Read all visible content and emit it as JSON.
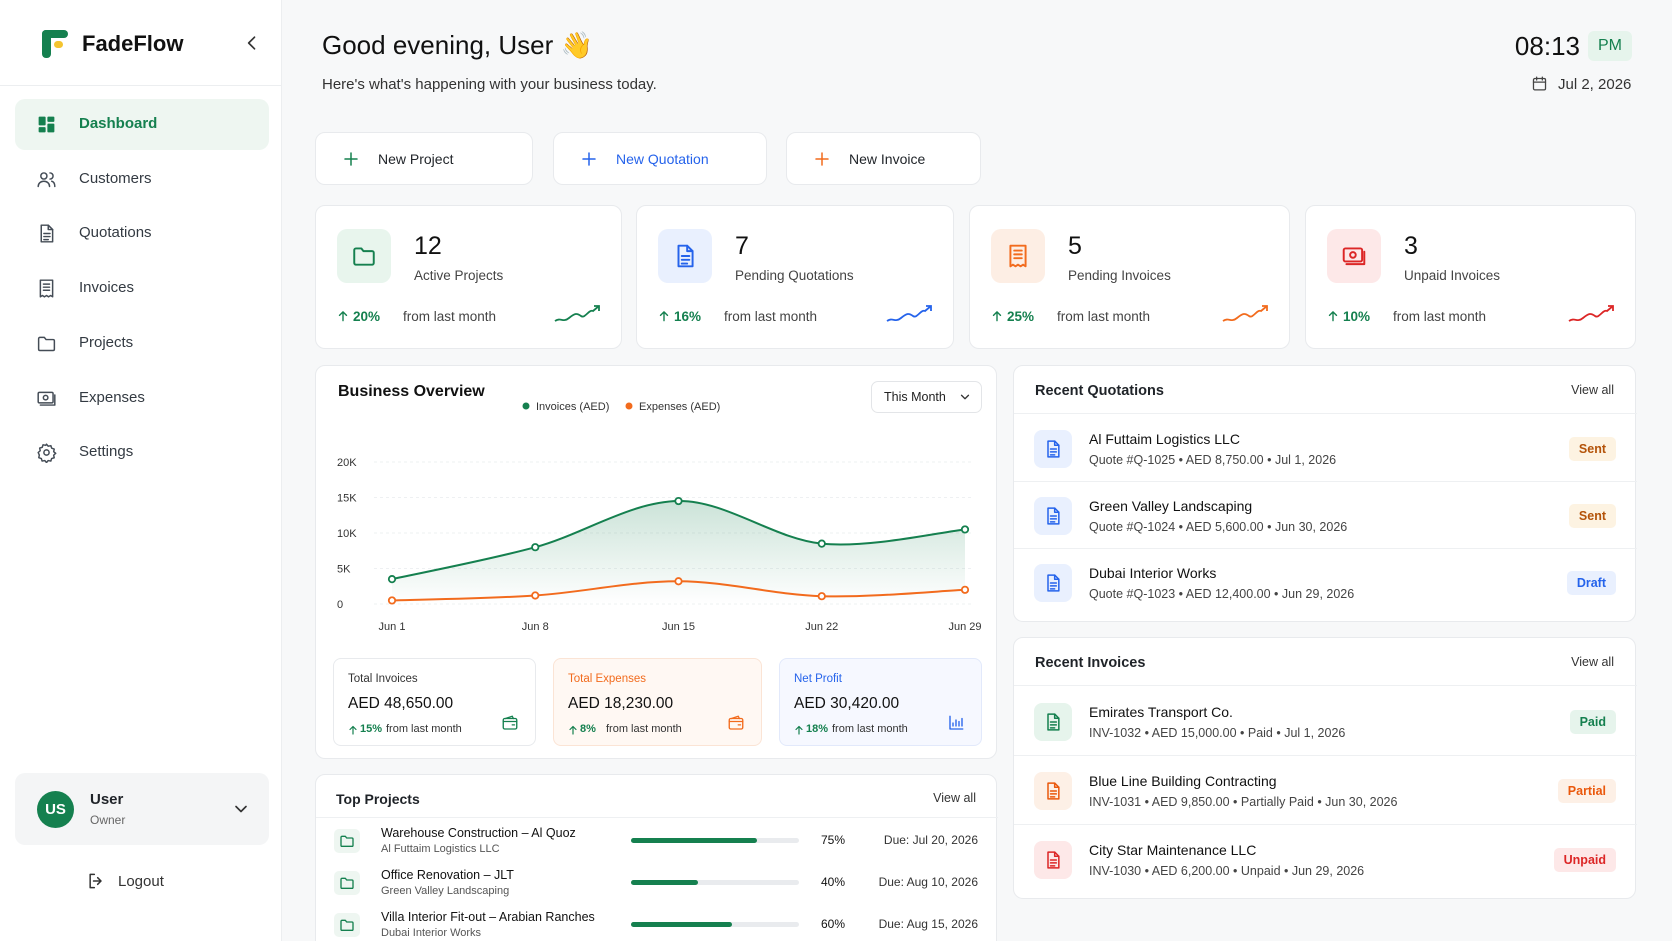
{
  "sidebar": {
    "brand": "FadeFlow",
    "nav": [
      "Dashboard",
      "Customers",
      "Quotations",
      "Invoices",
      "Projects",
      "Expenses",
      "Settings"
    ],
    "user": {
      "initials": "US",
      "name": "User",
      "role": "Owner"
    },
    "logout": "Logout"
  },
  "header": {
    "greeting": "Good evening, User 👋",
    "subtitle": "Here's what's happening with your business today.",
    "time": "08:13",
    "period": "PM",
    "date": "Jul 2, 2026"
  },
  "actions": [
    "New Project",
    "New Quotation",
    "New Invoice"
  ],
  "stats": [
    {
      "value": "12",
      "label": "Active Projects",
      "change": "20%",
      "change_text": "from last month"
    },
    {
      "value": "7",
      "label": "Pending Quotations",
      "change": "16%",
      "change_text": "from last month"
    },
    {
      "value": "5",
      "label": "Pending Invoices",
      "change": "25%",
      "change_text": "from last month"
    },
    {
      "value": "3",
      "label": "Unpaid Invoices",
      "change": "10%",
      "change_text": "from last month"
    }
  ],
  "overview": {
    "title": "Business Overview",
    "filter": "This Month",
    "chart_data": {
      "type": "line",
      "categories": [
        "Jun 1",
        "Jun 8",
        "Jun 15",
        "Jun 22",
        "Jun 29"
      ],
      "series": [
        {
          "name": "Invoices (AED)",
          "color": "#15804f",
          "values": [
            3500,
            8000,
            14500,
            8500,
            10500
          ]
        },
        {
          "name": "Expenses (AED)",
          "color": "#f26b1d",
          "values": [
            500,
            1200,
            3200,
            1100,
            2000
          ]
        }
      ],
      "ylim": [
        0,
        20000
      ],
      "yticks": [
        0,
        {
          "value": 5000,
          "label": "5K"
        },
        {
          "value": 10000,
          "label": "10K"
        },
        {
          "value": 15000,
          "label": "15K"
        },
        {
          "value": 20000,
          "label": "20K"
        }
      ],
      "grid": true,
      "legend": "top"
    },
    "summary": [
      {
        "label": "Total Invoices",
        "value": "AED 48,650.00",
        "change": "15%",
        "change_text": "from last month"
      },
      {
        "label": "Total Expenses",
        "value": "AED 18,230.00",
        "change": "8%",
        "change_text": "from last month"
      },
      {
        "label": "Net Profit",
        "value": "AED 30,420.00",
        "change": "18%",
        "change_text": "from last month"
      }
    ]
  },
  "top_projects": {
    "title": "Top Projects",
    "view_all": "View all",
    "rows": [
      {
        "name": "Warehouse Construction – Al Quoz",
        "client": "Al Futtaim Logistics LLC",
        "progress": 75,
        "progress_label": "75%",
        "due": "Due: Jul 20, 2026"
      },
      {
        "name": "Office Renovation – JLT",
        "client": "Green Valley Landscaping",
        "progress": 40,
        "progress_label": "40%",
        "due": "Due: Aug 10, 2026"
      },
      {
        "name": "Villa Interior Fit-out – Arabian Ranches",
        "client": "Dubai Interior Works",
        "progress": 60,
        "progress_label": "60%",
        "due": "Due: Aug 15, 2026"
      }
    ]
  },
  "recent_quotations": {
    "title": "Recent Quotations",
    "view_all": "View all",
    "rows": [
      {
        "name": "Al Futtaim Logistics LLC",
        "detail": "Quote #Q-1025 • AED 8,750.00 • Jul 1, 2026",
        "status": "Sent"
      },
      {
        "name": "Green Valley Landscaping",
        "detail": "Quote #Q-1024 • AED 5,600.00 • Jun 30, 2026",
        "status": "Sent"
      },
      {
        "name": "Dubai Interior Works",
        "detail": "Quote #Q-1023 • AED 12,400.00 • Jun 29, 2026",
        "status": "Draft"
      }
    ]
  },
  "recent_invoices": {
    "title": "Recent Invoices",
    "view_all": "View all",
    "rows": [
      {
        "name": "Emirates Transport Co.",
        "detail": "INV-1032 • AED 15,000.00 • Paid • Jul 1, 2026",
        "status": "Paid"
      },
      {
        "name": "Blue Line Building Contracting",
        "detail": "INV-1031 • AED 9,850.00 • Partially Paid • Jun 30, 2026",
        "status": "Partial"
      },
      {
        "name": "City Star Maintenance LLC",
        "detail": "INV-1030 • AED 6,200.00 • Unpaid • Jun 29, 2026",
        "status": "Unpaid"
      }
    ]
  }
}
